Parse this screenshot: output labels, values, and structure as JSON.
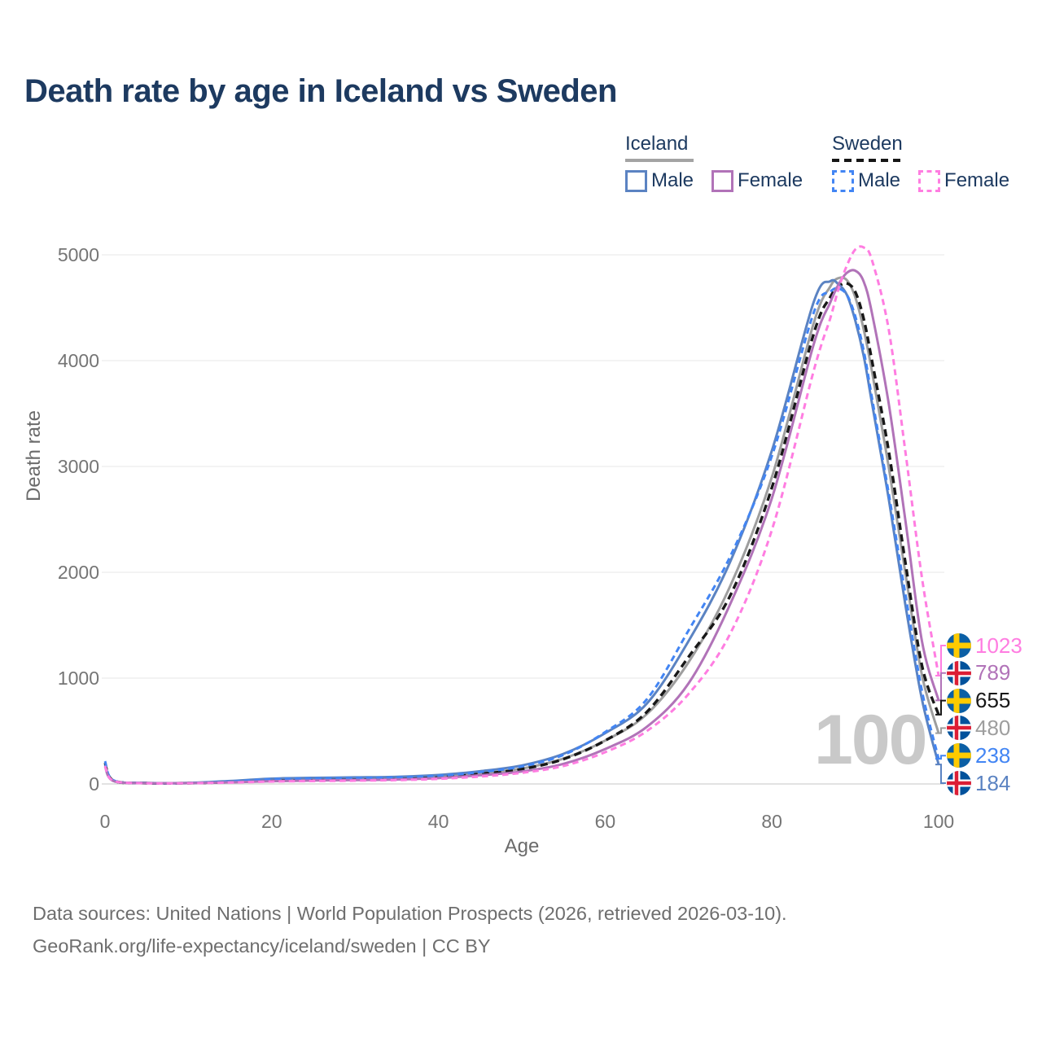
{
  "title": "Death rate by age in Iceland vs Sweden",
  "watermark": "100",
  "legend": {
    "groups": [
      {
        "label": "Iceland",
        "line_style": "solid",
        "underline_color": "#a3a3a3",
        "items": [
          {
            "label": "Male",
            "series": "iceland_male"
          },
          {
            "label": "Female",
            "series": "iceland_female"
          }
        ]
      },
      {
        "label": "Sweden",
        "line_style": "dashed",
        "underline_color": "#161616",
        "items": [
          {
            "label": "Male",
            "series": "sweden_male"
          },
          {
            "label": "Female",
            "series": "sweden_female"
          }
        ]
      }
    ]
  },
  "axes": {
    "y_title": "Death rate",
    "x_title": "Age",
    "y_ticks": [
      0,
      1000,
      2000,
      3000,
      4000,
      5000
    ],
    "x_ticks": [
      0,
      20,
      40,
      60,
      80,
      100
    ]
  },
  "chart_data": {
    "type": "line",
    "title": "Death rate by age in Iceland vs Sweden",
    "xlabel": "Age",
    "ylabel": "Death rate",
    "xlim": [
      0,
      100
    ],
    "ylim": [
      0,
      5000
    ],
    "grid": "horizontal",
    "legend_position": "top-right",
    "x": [
      0,
      1,
      5,
      10,
      15,
      20,
      25,
      30,
      35,
      40,
      45,
      50,
      55,
      60,
      65,
      70,
      75,
      80,
      85,
      87,
      88,
      89,
      90,
      91,
      92,
      94,
      96,
      98,
      100
    ],
    "series": [
      {
        "id": "iceland_all",
        "name": "Iceland (both sexes)",
        "country": "Iceland",
        "color": "#9e9e9e",
        "dash": "solid",
        "flag": "iceland",
        "end_value": 480,
        "values": [
          195,
          30,
          9,
          9,
          22,
          42,
          50,
          54,
          58,
          72,
          100,
          145,
          240,
          410,
          660,
          1150,
          1870,
          2900,
          4350,
          4700,
          4780,
          4760,
          4600,
          4300,
          3900,
          3000,
          2000,
          1030,
          480
        ]
      },
      {
        "id": "sweden_all",
        "name": "Sweden (both sexes)",
        "country": "Sweden",
        "color": "#181818",
        "dash": "dashed",
        "flag": "sweden",
        "end_value": 655,
        "values": [
          200,
          32,
          8,
          8,
          18,
          35,
          44,
          48,
          54,
          66,
          95,
          140,
          235,
          410,
          680,
          1200,
          1780,
          2800,
          4250,
          4600,
          4700,
          4730,
          4650,
          4400,
          4000,
          3150,
          2100,
          1120,
          655
        ]
      },
      {
        "id": "iceland_male",
        "name": "Iceland Male",
        "country": "Iceland",
        "color": "#5b83c2",
        "dash": "solid",
        "flag": "iceland",
        "end_value": 184,
        "values": [
          180,
          30,
          10,
          10,
          28,
          50,
          58,
          62,
          68,
          85,
          120,
          175,
          285,
          480,
          760,
          1350,
          2100,
          3150,
          4550,
          4750,
          4720,
          4620,
          4380,
          4050,
          3600,
          2700,
          1700,
          800,
          184
        ]
      },
      {
        "id": "sweden_male",
        "name": "Sweden Male",
        "country": "Sweden",
        "color": "#4285f4",
        "dash": "dashed",
        "flag": "sweden",
        "end_value": 238,
        "values": [
          215,
          35,
          8,
          8,
          22,
          45,
          52,
          56,
          62,
          78,
          112,
          165,
          275,
          490,
          800,
          1450,
          2150,
          3100,
          4450,
          4650,
          4680,
          4620,
          4420,
          4100,
          3650,
          2750,
          1800,
          880,
          238
        ]
      },
      {
        "id": "iceland_female",
        "name": "Iceland Female",
        "country": "Iceland",
        "color": "#b173b8",
        "dash": "solid",
        "flag": "iceland",
        "end_value": 789,
        "values": [
          165,
          28,
          8,
          8,
          15,
          26,
          32,
          36,
          42,
          55,
          82,
          118,
          190,
          330,
          540,
          950,
          1700,
          2700,
          4150,
          4550,
          4720,
          4830,
          4850,
          4750,
          4450,
          3600,
          2500,
          1350,
          789
        ]
      },
      {
        "id": "sweden_female",
        "name": "Sweden Female",
        "country": "Sweden",
        "color": "#ff7de1",
        "dash": "dashed",
        "flag": "sweden",
        "end_value": 1023,
        "values": [
          170,
          30,
          7,
          7,
          13,
          22,
          27,
          31,
          36,
          48,
          70,
          105,
          170,
          300,
          500,
          850,
          1420,
          2400,
          3900,
          4400,
          4680,
          4900,
          5050,
          5070,
          4950,
          4300,
          3150,
          1950,
          1023
        ]
      }
    ],
    "end_labels": [
      {
        "series": "sweden_female",
        "value": "1023"
      },
      {
        "series": "iceland_female",
        "value": "789"
      },
      {
        "series": "sweden_all",
        "value": "655"
      },
      {
        "series": "iceland_all",
        "value": "480"
      },
      {
        "series": "sweden_male",
        "value": "238"
      },
      {
        "series": "iceland_male",
        "value": "184"
      }
    ],
    "flag_colors": {
      "sweden": {
        "field": "#0b5fa5",
        "cross": "#fecb00"
      },
      "iceland": {
        "field": "#02529c",
        "cross_outer": "#ffffff",
        "cross_inner": "#dc1e35"
      }
    }
  },
  "footer": {
    "line1": "Data sources: United Nations | World Population Prospects (2026, retrieved 2026-03-10).",
    "line2": "GeoRank.org/life-expectancy/iceland/sweden | CC BY"
  }
}
